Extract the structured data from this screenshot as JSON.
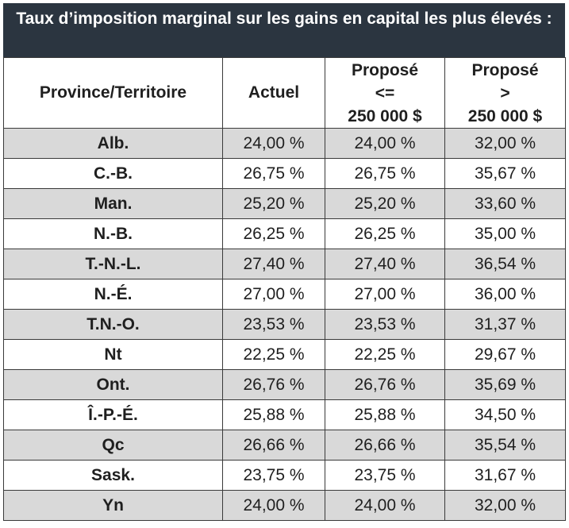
{
  "title": "Taux d’imposition marginal sur les gains en capital les plus élevés :",
  "headers": {
    "province": "Province/Territoire",
    "actuel": "Actuel",
    "propose_le": [
      "Proposé",
      "<=",
      "250 000 $"
    ],
    "propose_gt": [
      "Proposé",
      ">",
      "250 000 $"
    ]
  },
  "rows": [
    {
      "province": "Alb.",
      "actuel": "24,00 %",
      "propose_le": "24,00 %",
      "propose_gt": "32,00 %"
    },
    {
      "province": "C.-B.",
      "actuel": "26,75 %",
      "propose_le": "26,75 %",
      "propose_gt": "35,67 %"
    },
    {
      "province": "Man.",
      "actuel": "25,20 %",
      "propose_le": "25,20 %",
      "propose_gt": "33,60 %"
    },
    {
      "province": "N.-B.",
      "actuel": "26,25 %",
      "propose_le": "26,25 %",
      "propose_gt": "35,00 %"
    },
    {
      "province": "T.-N.-L.",
      "actuel": "27,40 %",
      "propose_le": "27,40 %",
      "propose_gt": "36,54 %"
    },
    {
      "province": "N.-É.",
      "actuel": "27,00 %",
      "propose_le": "27,00 %",
      "propose_gt": "36,00 %"
    },
    {
      "province": "T.N.-O.",
      "actuel": "23,53 %",
      "propose_le": "23,53 %",
      "propose_gt": "31,37 %"
    },
    {
      "province": "Nt",
      "actuel": "22,25 %",
      "propose_le": "22,25 %",
      "propose_gt": "29,67 %"
    },
    {
      "province": "Ont.",
      "actuel": "26,76 %",
      "propose_le": "26,76 %",
      "propose_gt": "35,69 %"
    },
    {
      "province": "Î.-P.-É.",
      "actuel": "25,88 %",
      "propose_le": "25,88 %",
      "propose_gt": "34,50 %"
    },
    {
      "province": "Qc",
      "actuel": "26,66 %",
      "propose_le": "26,66 %",
      "propose_gt": "35,54 %"
    },
    {
      "province": "Sask.",
      "actuel": "23,75 %",
      "propose_le": "23,75 %",
      "propose_gt": "31,67 %"
    },
    {
      "province": "Yn",
      "actuel": "24,00 %",
      "propose_le": "24,00 %",
      "propose_gt": "32,00 %"
    }
  ],
  "colors": {
    "title_background": "#2b3540",
    "title_text": "#ffffff",
    "stripe": "#d9d9d9",
    "border": "#3a3a3a"
  }
}
